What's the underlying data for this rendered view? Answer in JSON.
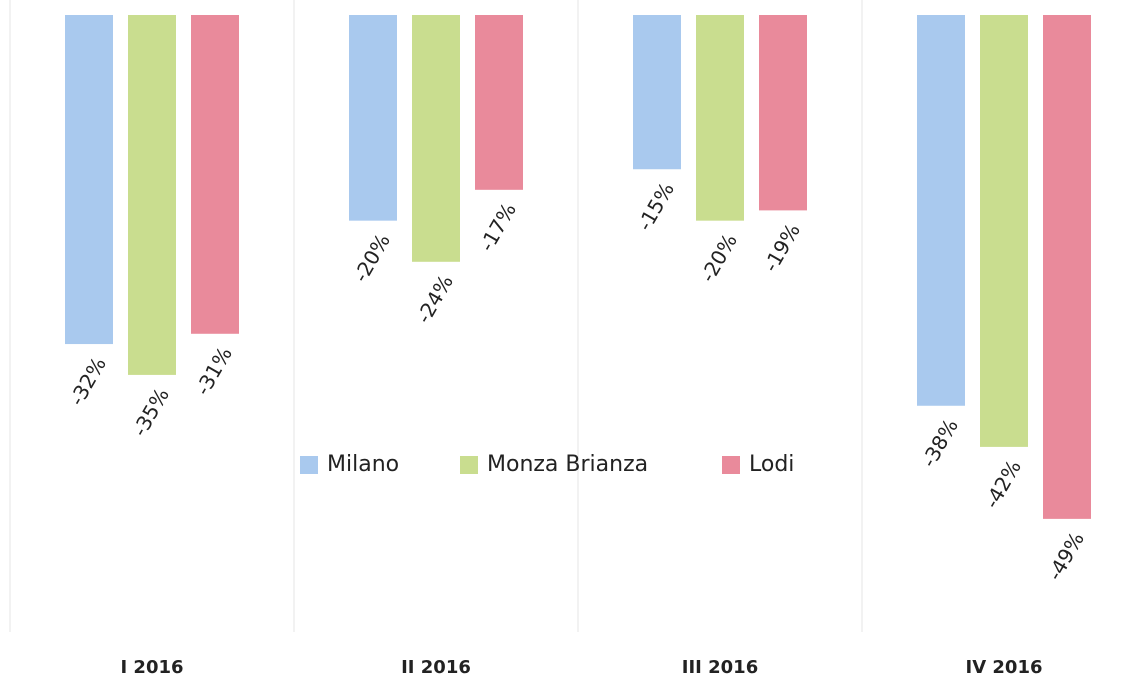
{
  "chart_data": {
    "type": "bar",
    "categories": [
      "I 2016",
      "II 2016",
      "III 2016",
      "IV 2016"
    ],
    "series": [
      {
        "name": "Milano",
        "color": "#a9c9ee",
        "values": [
          -32,
          -20,
          -15,
          -38
        ],
        "value_labels": [
          "-32%",
          "-20%",
          "-15%",
          "-38%"
        ]
      },
      {
        "name": "Monza Brianza",
        "color": "#c9dd8f",
        "values": [
          -35,
          -24,
          -20,
          -42
        ],
        "value_labels": [
          "-35%",
          "-24%",
          "-20%",
          "-42%"
        ]
      },
      {
        "name": "Lodi",
        "color": "#e98a9b",
        "values": [
          -31,
          -17,
          -19,
          -49
        ],
        "value_labels": [
          "-31%",
          "-17%",
          "-19%",
          "-49%"
        ]
      }
    ],
    "ylim": [
      -60,
      0
    ],
    "legend": "center"
  }
}
